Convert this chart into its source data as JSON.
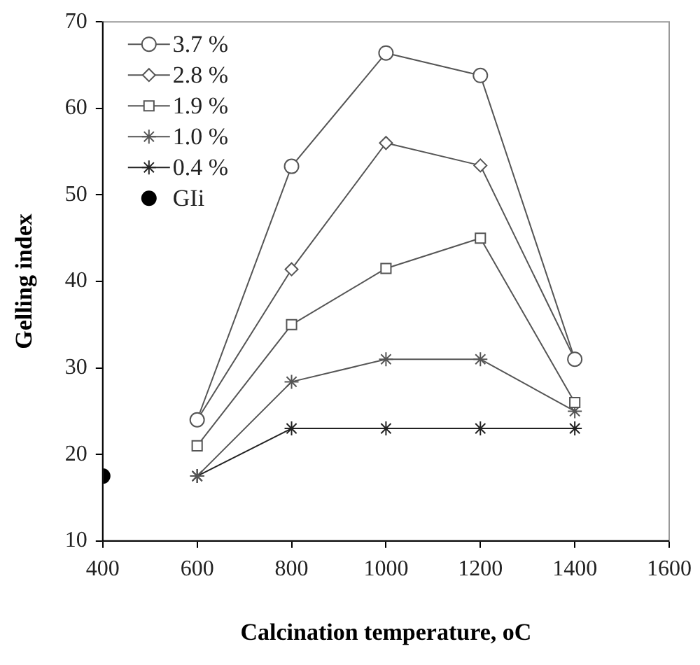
{
  "chart_data": {
    "type": "line",
    "xlabel": "Calcination temperature, oC",
    "ylabel": "Gelling index",
    "xlim": [
      400,
      1600
    ],
    "xticks": [
      400,
      600,
      800,
      1000,
      1200,
      1400,
      1600
    ],
    "ylim": [
      10,
      70
    ],
    "yticks": [
      10,
      20,
      30,
      40,
      50,
      60,
      70
    ],
    "grid": false,
    "legend": "top left",
    "series": [
      {
        "name": "3.7 %",
        "color": "#555555",
        "marker": "circle",
        "x": [
          600,
          800,
          1000,
          1200,
          1400
        ],
        "values": [
          24,
          53.3,
          66.4,
          63.8,
          31
        ]
      },
      {
        "name": "2.8 %",
        "color": "#555555",
        "marker": "diamond",
        "x": [
          600,
          800,
          1000,
          1200,
          1400
        ],
        "values": [
          24,
          41.4,
          56,
          53.4,
          31
        ]
      },
      {
        "name": "1.9 %",
        "color": "#555555",
        "marker": "square",
        "x": [
          600,
          800,
          1000,
          1200,
          1400
        ],
        "values": [
          21,
          35,
          41.5,
          45,
          26
        ]
      },
      {
        "name": "1.0 %",
        "color": "#555555",
        "marker": "cross",
        "x": [
          600,
          800,
          1000,
          1200,
          1400
        ],
        "values": [
          17.5,
          28.4,
          31,
          31,
          25
        ]
      },
      {
        "name": "0.4 %",
        "color": "#222222",
        "marker": "cross",
        "x": [
          600,
          800,
          1000,
          1200,
          1400
        ],
        "values": [
          17.5,
          23,
          23,
          23,
          23
        ]
      },
      {
        "name": "GIi",
        "type": "scatter",
        "color": "#000000",
        "marker": "circle",
        "x": [
          400
        ],
        "values": [
          17.5
        ]
      }
    ]
  }
}
